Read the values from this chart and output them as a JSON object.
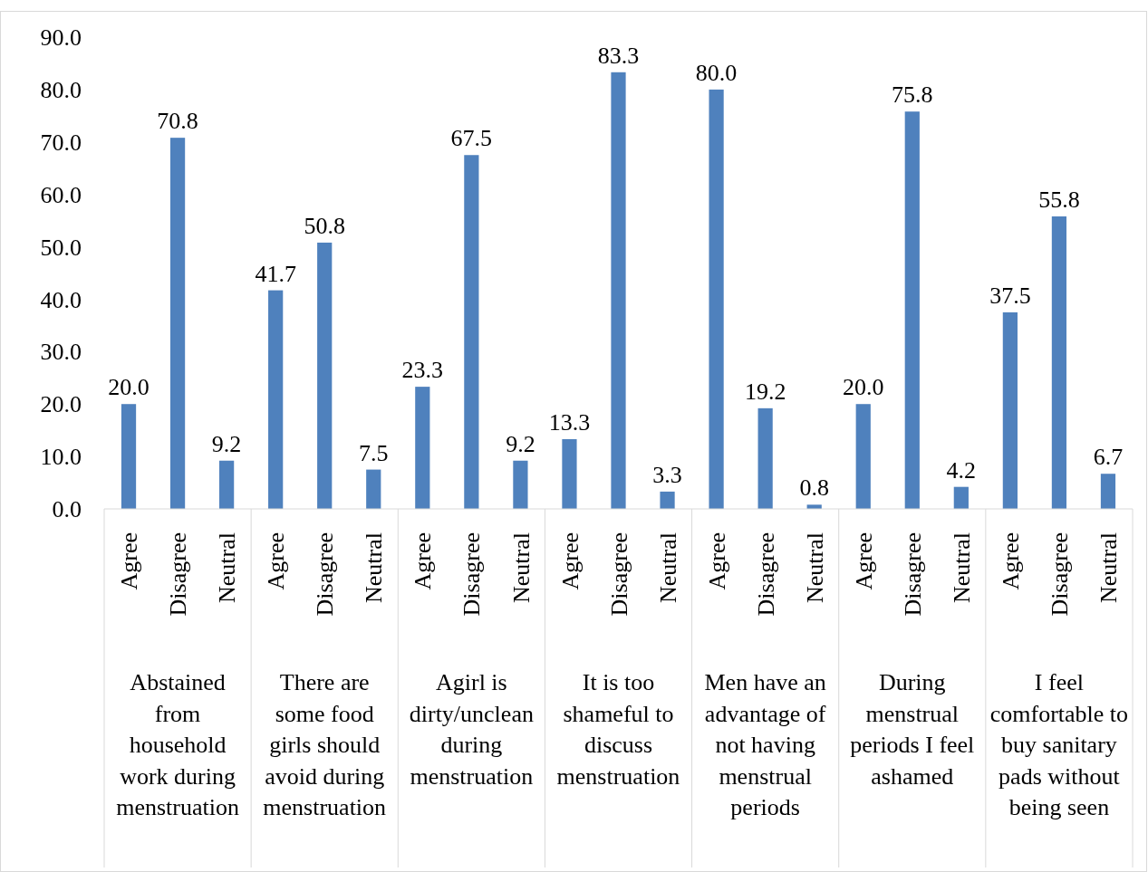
{
  "chart_data": {
    "type": "bar",
    "categories": [
      "Agree",
      "Disagree",
      "Neutral",
      "Agree",
      "Disagree",
      "Neutral",
      "Agree",
      "Disagree",
      "Neutral",
      "Agree",
      "Disagree",
      "Neutral",
      "Agree",
      "Disagree",
      "Neutral",
      "Agree",
      "Disagree",
      "Neutral",
      "Agree",
      "Disagree",
      "Neutral"
    ],
    "values": [
      20.0,
      70.8,
      9.2,
      41.7,
      50.8,
      7.5,
      23.3,
      67.5,
      9.2,
      13.3,
      83.3,
      3.3,
      80.0,
      19.2,
      0.8,
      20.0,
      75.8,
      4.2,
      37.5,
      55.8,
      6.7
    ],
    "color": "#4f81bd",
    "value_labels": [
      "20.0",
      "70.8",
      "9.2",
      "41.7",
      "50.8",
      "7.5",
      "23.3",
      "67.5",
      "9.2",
      "13.3",
      "83.3",
      "3.3",
      "80.0",
      "19.2",
      "0.8",
      "20.0",
      "75.8",
      "4.2",
      "37.5",
      "55.8",
      "6.7"
    ],
    "annotations": [
      "Abstained from household work during menstruation",
      "There are some food girls should avoid during menstruation",
      "Agirl is dirty/unclean during menstruation",
      "It is too shameful to discuss menstruation",
      "Men have an advantage of not having menstrual periods",
      "During menstrual periods I feel ashamed",
      "I feel comfortable to buy sanitary pads without being seen"
    ],
    "ylim": [
      0,
      90
    ],
    "yticks": [
      {
        "value": 0,
        "label": "0.0"
      },
      {
        "value": 10,
        "label": "10.0"
      },
      {
        "value": 20,
        "label": "20.0"
      },
      {
        "value": 30,
        "label": "30.0"
      },
      {
        "value": 40,
        "label": "40.0"
      },
      {
        "value": 50,
        "label": "50.0"
      },
      {
        "value": 60,
        "label": "60.0"
      },
      {
        "value": 70,
        "label": "70.0"
      },
      {
        "value": 80,
        "label": "80.0"
      },
      {
        "value": 90,
        "label": "90.0"
      }
    ],
    "grid": false
  }
}
